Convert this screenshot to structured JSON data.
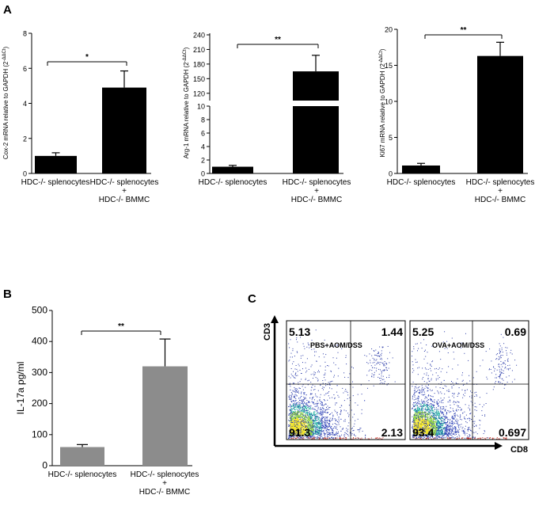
{
  "panels": {
    "A": "A",
    "B": "B",
    "C": "C"
  },
  "chart_data": [
    {
      "id": "a1",
      "type": "bar",
      "categories": [
        "HDC-/- splenocytes",
        "HDC-/- splenocytes\n+\nHDC-/- BMMC"
      ],
      "values": [
        1.0,
        4.9
      ],
      "errors": [
        0.18,
        0.95
      ],
      "ylabel": "Cox-2 mRNA relative to GAPDH (2-ΔΔCt)",
      "ylim": [
        0,
        8
      ],
      "yticks": [
        0,
        2,
        4,
        6,
        8
      ],
      "significance": "*",
      "color": "#000000"
    },
    {
      "id": "a2",
      "type": "bar",
      "categories": [
        "HDC-/- splenocytes",
        "HDC-/- splenocytes\n+\nHDC-/- BMMC"
      ],
      "values": [
        1.0,
        165
      ],
      "errors": [
        0.2,
        33
      ],
      "ylabel": "Arg-1 mRNA relative to GAPDH (2-ΔΔCt)",
      "axis_break": true,
      "lower_range": [
        0,
        10
      ],
      "lower_ticks": [
        0,
        2,
        4,
        6,
        8,
        10
      ],
      "upper_range": [
        105,
        240
      ],
      "upper_ticks": [
        120,
        150,
        180,
        210,
        240
      ],
      "significance": "**",
      "color": "#000000"
    },
    {
      "id": "a3",
      "type": "bar",
      "categories": [
        "HDC-/- splenocytes",
        "HDC-/- splenocytes\n+\nHDC-/- BMMC"
      ],
      "values": [
        1.1,
        16.3
      ],
      "errors": [
        0.3,
        1.9
      ],
      "ylabel": "Ki67 mRNA relative to GAPDH (2-ΔΔCt)",
      "ylim": [
        0,
        20
      ],
      "yticks": [
        0,
        5,
        10,
        15,
        20
      ],
      "significance": "**",
      "color": "#000000"
    },
    {
      "id": "b",
      "type": "bar",
      "categories": [
        "HDC-/- splenocytes",
        "HDC-/- splenocytes\n+\nHDC-/- BMMC"
      ],
      "values": [
        60,
        320
      ],
      "errors": [
        8,
        88
      ],
      "ylabel": "IL-17a pg/ml",
      "ylim": [
        0,
        500
      ],
      "yticks": [
        0,
        100,
        200,
        300,
        400,
        500
      ],
      "significance": "**",
      "color": "#8c8c8c"
    }
  ],
  "flow": {
    "xaxis": "CD8",
    "yaxis": "CD3",
    "plots": [
      {
        "label": "PBS+AOM/DSS",
        "ul": "5.13",
        "ur": "1.44",
        "ll": "91.3",
        "lr": "2.13"
      },
      {
        "label": "OVA+AOM/DSS",
        "ul": "5.25",
        "ur": "0.69",
        "ll": "93.4",
        "lr": "0.697"
      }
    ]
  }
}
